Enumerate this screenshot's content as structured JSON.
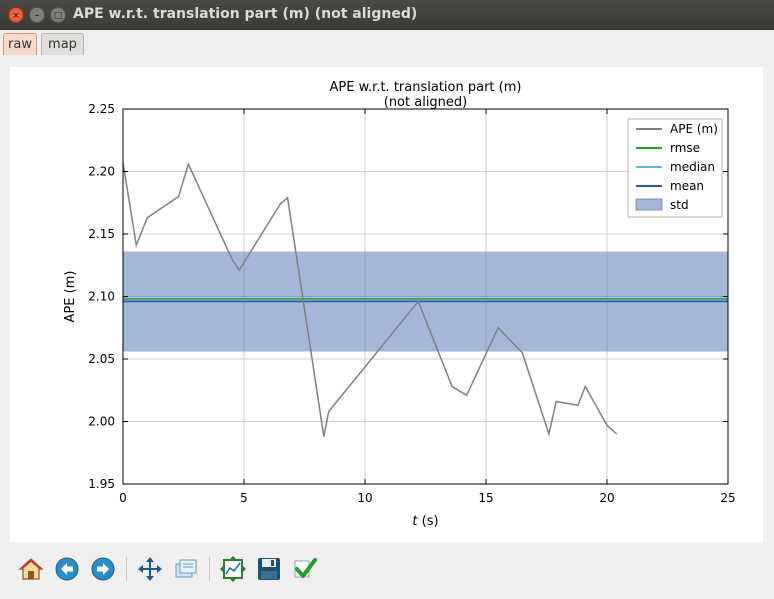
{
  "window": {
    "title": "APE w.r.t. translation part (m) (not aligned)",
    "close_glyph": "×",
    "minimize_glyph": "–",
    "maximize_glyph": "□"
  },
  "tabs": [
    {
      "label": "raw",
      "active": true
    },
    {
      "label": "map",
      "active": false
    }
  ],
  "toolbar": {
    "buttons": [
      "home-icon",
      "back-arrow-icon",
      "forward-arrow-icon",
      "pan-icon",
      "zoom-rect-icon",
      "subplots-icon",
      "save-icon",
      "check-icon"
    ]
  },
  "chart_data": {
    "type": "line",
    "title_line1": "APE w.r.t. translation part (m)",
    "title_line2": "(not aligned)",
    "xlabel_italic": "t",
    "xlabel_rest": " (s)",
    "ylabel": "APE (m)",
    "xlim": [
      0,
      25
    ],
    "ylim": [
      1.95,
      2.25
    ],
    "xticks": [
      0,
      5,
      10,
      15,
      20,
      25
    ],
    "yticks": [
      "1.95",
      "2.00",
      "2.05",
      "2.10",
      "2.15",
      "2.20",
      "2.25"
    ],
    "grid": true,
    "legend_position": "top-right",
    "series": [
      {
        "name": "APE (m)",
        "color": "#808080",
        "x": [
          0,
          0.55,
          1.0,
          2.3,
          2.7,
          4.5,
          4.8,
          6.5,
          6.8,
          8.3,
          8.5,
          12.2,
          13.6,
          14.2,
          15.5,
          16.2,
          16.5,
          17.6,
          17.9,
          18.8,
          19.1,
          20.0,
          20.4
        ],
        "y": [
          2.207,
          2.141,
          2.163,
          2.18,
          2.206,
          2.13,
          2.121,
          2.174,
          2.179,
          1.988,
          2.008,
          2.096,
          2.028,
          2.021,
          2.075,
          2.061,
          2.055,
          1.99,
          2.016,
          2.013,
          2.028,
          1.997,
          1.99
        ]
      },
      {
        "name": "rmse",
        "color": "#2ca02c",
        "value": 2.098
      },
      {
        "name": "median",
        "color": "#5bb6e0",
        "value": 2.097
      },
      {
        "name": "mean",
        "color": "#2c5aa0",
        "value": 2.096
      }
    ],
    "std_band": {
      "name": "std",
      "color": "#4c72b0",
      "opacity": 0.5,
      "lower": 2.056,
      "upper": 2.136
    }
  }
}
